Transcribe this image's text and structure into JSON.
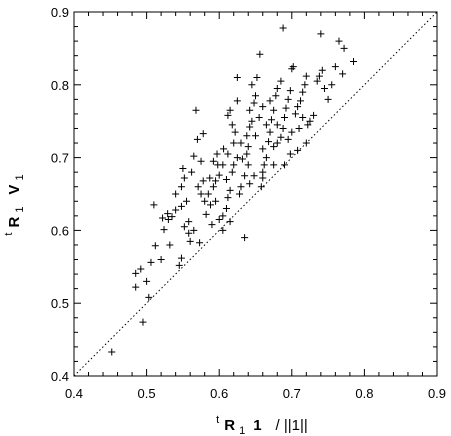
{
  "chart_data": {
    "type": "scatter",
    "title": "",
    "xlabel": {
      "pre_superscript": "t",
      "bold": "R",
      "subscript": "1",
      "bold2": "1",
      "tail": "/ ||1||"
    },
    "ylabel": {
      "pre_superscript": "t",
      "bold": "R",
      "subscript": "1",
      "bold2": "V",
      "subscript2": "1"
    },
    "xlim": [
      0.4,
      0.9
    ],
    "ylim": [
      0.4,
      0.9
    ],
    "xticks": [
      "0.4",
      "0.5",
      "0.6",
      "0.7",
      "0.8",
      "0.9"
    ],
    "yticks": [
      "0.4",
      "0.5",
      "0.6",
      "0.7",
      "0.8",
      "0.9"
    ],
    "grid": false,
    "reference_line": {
      "style": "dotted",
      "from": [
        0.4,
        0.4
      ],
      "to": [
        0.9,
        0.9
      ]
    },
    "marker": "+",
    "points": [
      [
        0.452,
        0.433
      ],
      [
        0.495,
        0.474
      ],
      [
        0.503,
        0.508
      ],
      [
        0.485,
        0.522
      ],
      [
        0.5,
        0.53
      ],
      [
        0.485,
        0.541
      ],
      [
        0.492,
        0.547
      ],
      [
        0.506,
        0.556
      ],
      [
        0.52,
        0.56
      ],
      [
        0.532,
        0.58
      ],
      [
        0.512,
        0.579
      ],
      [
        0.545,
        0.552
      ],
      [
        0.548,
        0.562
      ],
      [
        0.524,
        0.601
      ],
      [
        0.53,
        0.615
      ],
      [
        0.522,
        0.617
      ],
      [
        0.535,
        0.619
      ],
      [
        0.529,
        0.623
      ],
      [
        0.54,
        0.628
      ],
      [
        0.51,
        0.635
      ],
      [
        0.548,
        0.633
      ],
      [
        0.558,
        0.596
      ],
      [
        0.56,
        0.585
      ],
      [
        0.565,
        0.6
      ],
      [
        0.552,
        0.605
      ],
      [
        0.558,
        0.612
      ],
      [
        0.573,
        0.583
      ],
      [
        0.571,
        0.66
      ],
      [
        0.578,
        0.668
      ],
      [
        0.552,
        0.672
      ],
      [
        0.562,
        0.68
      ],
      [
        0.55,
        0.685
      ],
      [
        0.575,
        0.695
      ],
      [
        0.565,
        0.702
      ],
      [
        0.57,
        0.725
      ],
      [
        0.578,
        0.733
      ],
      [
        0.568,
        0.765
      ],
      [
        0.58,
        0.64
      ],
      [
        0.588,
        0.635
      ],
      [
        0.585,
        0.65
      ],
      [
        0.592,
        0.66
      ],
      [
        0.595,
        0.668
      ],
      [
        0.598,
        0.69
      ],
      [
        0.592,
        0.695
      ],
      [
        0.597,
        0.705
      ],
      [
        0.6,
        0.615
      ],
      [
        0.605,
        0.62
      ],
      [
        0.61,
        0.63
      ],
      [
        0.612,
        0.645
      ],
      [
        0.615,
        0.655
      ],
      [
        0.61,
        0.67
      ],
      [
        0.618,
        0.68
      ],
      [
        0.62,
        0.69
      ],
      [
        0.606,
        0.712
      ],
      [
        0.62,
        0.72
      ],
      [
        0.622,
        0.735
      ],
      [
        0.618,
        0.745
      ],
      [
        0.612,
        0.758
      ],
      [
        0.615,
        0.765
      ],
      [
        0.625,
        0.778
      ],
      [
        0.625,
        0.81
      ],
      [
        0.628,
        0.65
      ],
      [
        0.63,
        0.66
      ],
      [
        0.635,
        0.675
      ],
      [
        0.632,
        0.698
      ],
      [
        0.638,
        0.705
      ],
      [
        0.64,
        0.715
      ],
      [
        0.638,
        0.73
      ],
      [
        0.642,
        0.742
      ],
      [
        0.645,
        0.75
      ],
      [
        0.642,
        0.765
      ],
      [
        0.648,
        0.775
      ],
      [
        0.65,
        0.785
      ],
      [
        0.645,
        0.8
      ],
      [
        0.652,
        0.81
      ],
      [
        0.656,
        0.842
      ],
      [
        0.658,
        0.66
      ],
      [
        0.66,
        0.672
      ],
      [
        0.662,
        0.69
      ],
      [
        0.665,
        0.7
      ],
      [
        0.66,
        0.712
      ],
      [
        0.668,
        0.722
      ],
      [
        0.67,
        0.735
      ],
      [
        0.665,
        0.745
      ],
      [
        0.672,
        0.752
      ],
      [
        0.675,
        0.765
      ],
      [
        0.67,
        0.778
      ],
      [
        0.678,
        0.785
      ],
      [
        0.68,
        0.795
      ],
      [
        0.685,
        0.805
      ],
      [
        0.688,
        0.878
      ],
      [
        0.68,
        0.72
      ],
      [
        0.685,
        0.728
      ],
      [
        0.688,
        0.74
      ],
      [
        0.69,
        0.755
      ],
      [
        0.692,
        0.768
      ],
      [
        0.695,
        0.78
      ],
      [
        0.698,
        0.792
      ],
      [
        0.7,
        0.822
      ],
      [
        0.702,
        0.825
      ],
      [
        0.705,
        0.76
      ],
      [
        0.708,
        0.77
      ],
      [
        0.712,
        0.778
      ],
      [
        0.715,
        0.79
      ],
      [
        0.718,
        0.8
      ],
      [
        0.72,
        0.812
      ],
      [
        0.722,
        0.745
      ],
      [
        0.725,
        0.75
      ],
      [
        0.73,
        0.758
      ],
      [
        0.735,
        0.805
      ],
      [
        0.738,
        0.812
      ],
      [
        0.74,
        0.87
      ],
      [
        0.742,
        0.82
      ],
      [
        0.745,
        0.795
      ],
      [
        0.75,
        0.78
      ],
      [
        0.755,
        0.8
      ],
      [
        0.76,
        0.825
      ],
      [
        0.765,
        0.86
      ],
      [
        0.77,
        0.815
      ],
      [
        0.772,
        0.85
      ],
      [
        0.785,
        0.832
      ],
      [
        0.72,
        0.72
      ],
      [
        0.708,
        0.71
      ],
      [
        0.698,
        0.705
      ],
      [
        0.69,
        0.69
      ],
      [
        0.675,
        0.69
      ],
      [
        0.66,
        0.68
      ],
      [
        0.648,
        0.675
      ],
      [
        0.642,
        0.664
      ],
      [
        0.635,
        0.59
      ],
      [
        0.615,
        0.612
      ],
      [
        0.605,
        0.6
      ],
      [
        0.595,
        0.64
      ],
      [
        0.59,
        0.608
      ],
      [
        0.582,
        0.622
      ],
      [
        0.625,
        0.7
      ],
      [
        0.65,
        0.73
      ],
      [
        0.655,
        0.755
      ],
      [
        0.66,
        0.77
      ],
      [
        0.68,
        0.745
      ],
      [
        0.7,
        0.735
      ],
      [
        0.71,
        0.74
      ],
      [
        0.715,
        0.755
      ],
      [
        0.695,
        0.725
      ],
      [
        0.675,
        0.715
      ],
      [
        0.64,
        0.69
      ],
      [
        0.63,
        0.72
      ],
      [
        0.612,
        0.705
      ],
      [
        0.605,
        0.69
      ],
      [
        0.6,
        0.676
      ],
      [
        0.587,
        0.672
      ],
      [
        0.575,
        0.65
      ],
      [
        0.555,
        0.64
      ],
      [
        0.54,
        0.65
      ],
      [
        0.548,
        0.66
      ]
    ]
  }
}
